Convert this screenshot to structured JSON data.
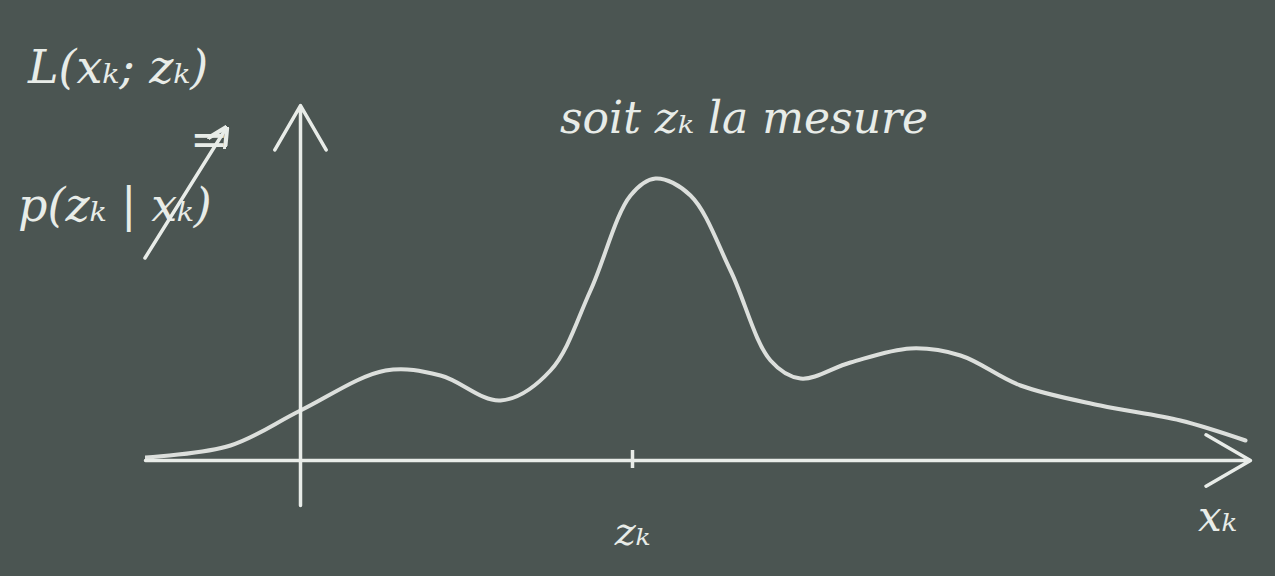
{
  "chart_data": {
    "type": "line",
    "ylabel": "L(xₖ; zₖ) = p(zₖ | xₖ)",
    "annotation": "soit zₖ la mesure",
    "xlabel": "xₖ",
    "x": [
      -1.55,
      -0.7,
      0,
      0.85,
      1.4,
      2.0,
      2.5,
      2.9,
      3.3,
      3.55,
      3.9,
      4.3,
      4.7,
      5.0,
      5.5,
      6.1,
      6.6,
      7.2,
      8.0,
      8.8,
      9.45
    ],
    "values": [
      0.03,
      0.15,
      0.5,
      0.9,
      0.85,
      0.6,
      0.9,
      1.7,
      2.65,
      2.82,
      2.65,
      1.9,
      1.0,
      0.82,
      0.98,
      1.12,
      1.05,
      0.75,
      0.55,
      0.4,
      0.2
    ],
    "xlim": [
      -1.55,
      9.5
    ],
    "ylim": [
      -0.45,
      3.55
    ],
    "xticks": [
      {
        "value": 3.32,
        "label": "zₖ"
      }
    ],
    "yticks": [],
    "tick_labels": "x",
    "grid": false,
    "color": "#e8ece8"
  }
}
